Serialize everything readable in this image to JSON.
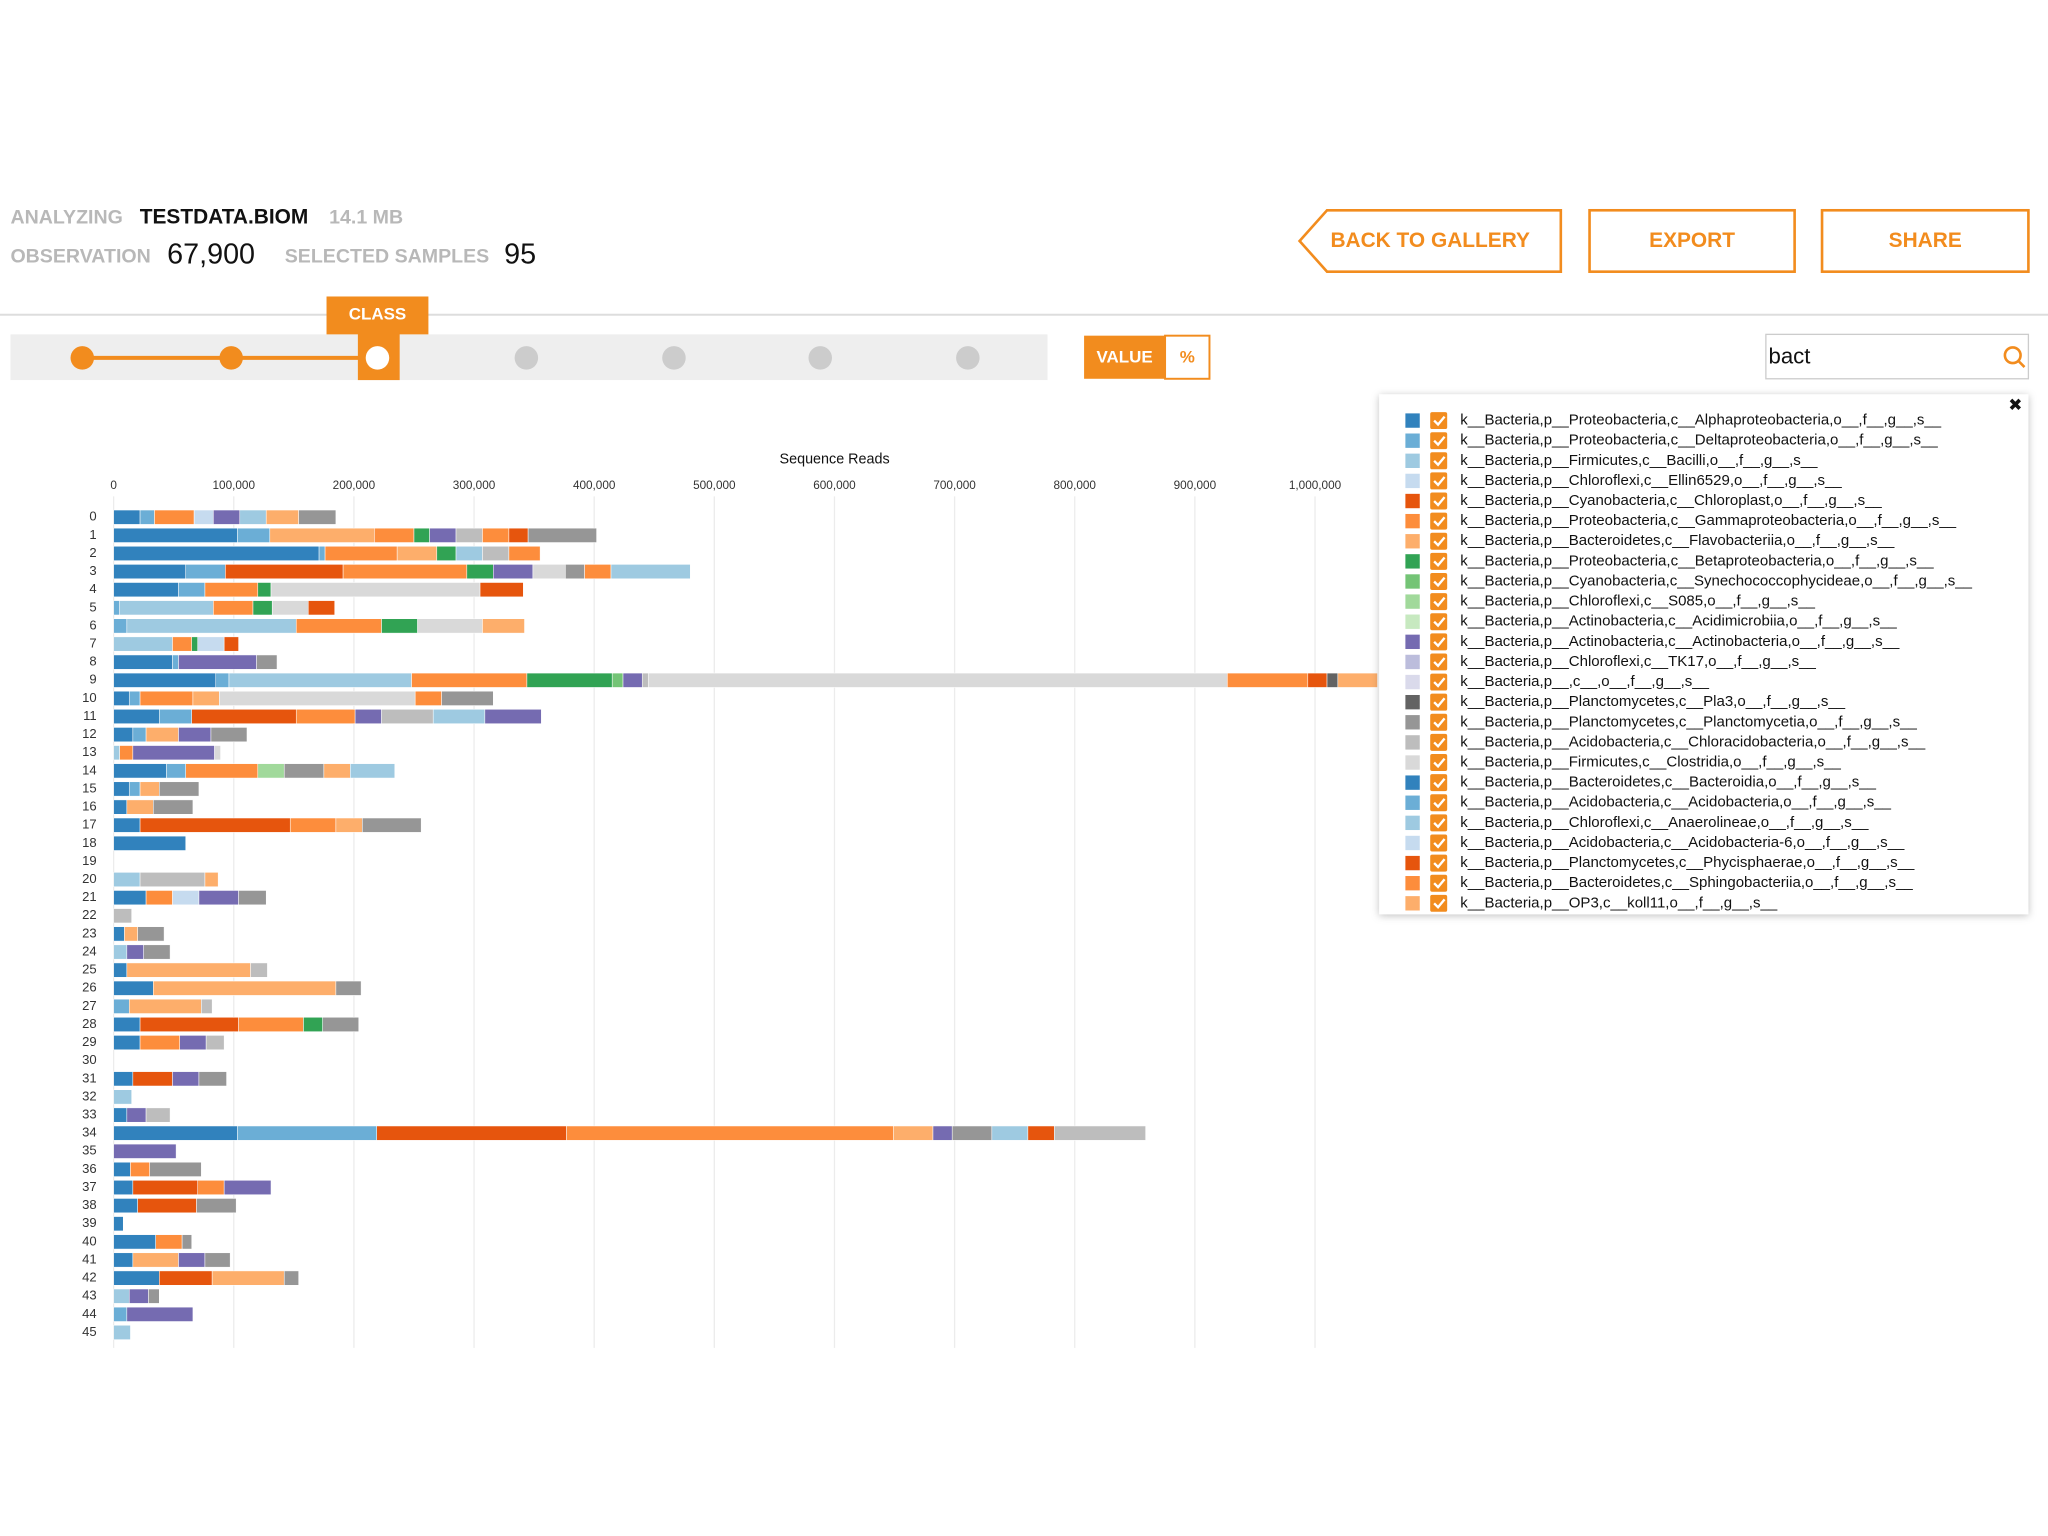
{
  "header": {
    "analyzing": "ANALYZING",
    "file": "TESTDATA.BIOM",
    "size": "14.1 MB",
    "observation_label": "OBSERVATION",
    "observation": "67,900",
    "samples_label": "SELECTED SAMPLES",
    "samples": "95"
  },
  "buttons": {
    "back": "BACK TO GALLERY",
    "export": "EXPORT",
    "share": "SHARE"
  },
  "slider": {
    "label": "CLASS"
  },
  "toggle": {
    "value": "VALUE",
    "percent": "%"
  },
  "search": {
    "query": "bact"
  },
  "chart_data": {
    "type": "stacked-bar-h",
    "x_label": "Sequence Reads",
    "grid": true,
    "xlim": [
      0,
      1060000
    ],
    "xticks": [
      0,
      {
        "value": 100000,
        "label": "100,000"
      },
      {
        "value": 200000,
        "label": "200,000"
      },
      {
        "value": 300000,
        "label": "300,000"
      },
      {
        "value": 400000,
        "label": "400,000"
      },
      {
        "value": 500000,
        "label": "500,000"
      },
      {
        "value": 600000,
        "label": "600,000"
      },
      {
        "value": 700000,
        "label": "700,000"
      },
      {
        "value": 800000,
        "label": "800,000"
      },
      {
        "value": 900000,
        "label": "900,000"
      },
      {
        "value": 1000000,
        "label": "1,000,000"
      }
    ],
    "categories": [
      "0",
      "1",
      "2",
      "3",
      "4",
      "5",
      "6",
      "7",
      "8",
      "9",
      "10",
      "11",
      "12",
      "13",
      "14",
      "15",
      "16",
      "17",
      "18",
      "19",
      "20",
      "21",
      "22",
      "23",
      "24",
      "25",
      "26",
      "27",
      "28",
      "29",
      "30",
      "31",
      "32",
      "33",
      "34",
      "35",
      "36",
      "37",
      "38",
      "39",
      "40",
      "41",
      "42",
      "43",
      "44",
      "45"
    ],
    "bars": [
      {
        "values": [
          22000,
          12000,
          33000,
          16000,
          22000,
          22000,
          27000,
          31000
        ],
        "colors": [
          "#3182bd",
          "#6baed6",
          "#fd8d3c",
          "#c6dbef",
          "#756bb1",
          "#9ecae1",
          "#fdae6b",
          "#969696"
        ]
      },
      {
        "values": [
          103000,
          27000,
          87000,
          33000,
          13000,
          22000,
          22000,
          22000,
          16000,
          57000
        ],
        "colors": [
          "#3182bd",
          "#6baed6",
          "#fdae6b",
          "#fd8d3c",
          "#31a354",
          "#756bb1",
          "#bdbdbd",
          "#fd8d3c",
          "#e6550d",
          "#969696"
        ]
      },
      {
        "values": [
          171000,
          5000,
          60000,
          33000,
          16000,
          22000,
          22000,
          26000
        ],
        "colors": [
          "#3182bd",
          "#6baed6",
          "#fd8d3c",
          "#fdae6b",
          "#31a354",
          "#9ecae1",
          "#bdbdbd",
          "#fd8d3c"
        ]
      },
      {
        "values": [
          60000,
          33000,
          98000,
          103000,
          22000,
          33000,
          27000,
          16000,
          22000,
          66000
        ],
        "colors": [
          "#3182bd",
          "#6baed6",
          "#e6550d",
          "#fd8d3c",
          "#31a354",
          "#756bb1",
          "#d9d9d9",
          "#969696",
          "#fd8d3c",
          "#9ecae1"
        ]
      },
      {
        "values": [
          54000,
          22000,
          44000,
          11000,
          174000,
          36000
        ],
        "colors": [
          "#3182bd",
          "#6baed6",
          "#fd8d3c",
          "#31a354",
          "#d9d9d9",
          "#e6550d"
        ]
      },
      {
        "values": [
          5000,
          78000,
          33000,
          16000,
          30000,
          22000
        ],
        "colors": [
          "#6baed6",
          "#9ecae1",
          "#fd8d3c",
          "#31a354",
          "#d9d9d9",
          "#e6550d"
        ]
      },
      {
        "values": [
          11000,
          141000,
          71000,
          30000,
          54000,
          35000
        ],
        "colors": [
          "#6baed6",
          "#9ecae1",
          "#fd8d3c",
          "#31a354",
          "#d9d9d9",
          "#fdae6b"
        ]
      },
      {
        "values": [
          49000,
          16000,
          5000,
          22000,
          12000
        ],
        "colors": [
          "#9ecae1",
          "#fd8d3c",
          "#31a354",
          "#c6dbef",
          "#e6550d"
        ]
      },
      {
        "values": [
          49000,
          5000,
          65000,
          17000
        ],
        "colors": [
          "#3182bd",
          "#6baed6",
          "#756bb1",
          "#969696"
        ]
      },
      {
        "values": [
          85000,
          11000,
          152000,
          96000,
          71000,
          9000,
          16000,
          5000,
          482000,
          67000,
          16000,
          9000,
          33000
        ],
        "colors": [
          "#3182bd",
          "#6baed6",
          "#9ecae1",
          "#fd8d3c",
          "#31a354",
          "#74c476",
          "#756bb1",
          "#bdbdbd",
          "#d9d9d9",
          "#fd8d3c",
          "#e6550d",
          "#636363",
          "#fdae6b"
        ]
      },
      {
        "values": [
          13000,
          9000,
          44000,
          22000,
          163000,
          22000,
          43000
        ],
        "colors": [
          "#3182bd",
          "#6baed6",
          "#fd8d3c",
          "#fdae6b",
          "#d9d9d9",
          "#fd8d3c",
          "#969696"
        ]
      },
      {
        "values": [
          38000,
          27000,
          87000,
          49000,
          22000,
          43000,
          43000,
          47000
        ],
        "colors": [
          "#3182bd",
          "#6baed6",
          "#e6550d",
          "#fd8d3c",
          "#756bb1",
          "#bdbdbd",
          "#9ecae1",
          "#756bb1"
        ]
      },
      {
        "values": [
          16000,
          11000,
          27000,
          27000,
          30000
        ],
        "colors": [
          "#3182bd",
          "#6baed6",
          "#fdae6b",
          "#756bb1",
          "#969696"
        ]
      },
      {
        "values": [
          5000,
          11000,
          68000,
          5000
        ],
        "colors": [
          "#9ecae1",
          "#fd8d3c",
          "#756bb1",
          "#d9d9d9"
        ]
      },
      {
        "values": [
          44000,
          16000,
          60000,
          22000,
          33000,
          22000,
          37000
        ],
        "colors": [
          "#3182bd",
          "#6baed6",
          "#fd8d3c",
          "#a1d99b",
          "#969696",
          "#fdae6b",
          "#9ecae1"
        ]
      },
      {
        "values": [
          13000,
          9000,
          16000,
          33000
        ],
        "colors": [
          "#3182bd",
          "#6baed6",
          "#fdae6b",
          "#969696"
        ]
      },
      {
        "values": [
          11000,
          22000,
          33000
        ],
        "colors": [
          "#3182bd",
          "#fdae6b",
          "#969696"
        ]
      },
      {
        "values": [
          22000,
          125000,
          38000,
          22000,
          49000
        ],
        "colors": [
          "#3182bd",
          "#e6550d",
          "#fd8d3c",
          "#fdae6b",
          "#969696"
        ]
      },
      {
        "values": [
          60000
        ],
        "colors": [
          "#3182bd"
        ]
      },
      {
        "values": [],
        "colors": []
      },
      {
        "values": [
          22000,
          54000,
          11000
        ],
        "colors": [
          "#9ecae1",
          "#bdbdbd",
          "#fdae6b"
        ]
      },
      {
        "values": [
          27000,
          22000,
          22000,
          33000,
          23000
        ],
        "colors": [
          "#3182bd",
          "#fd8d3c",
          "#c6dbef",
          "#756bb1",
          "#969696"
        ]
      },
      {
        "values": [
          15000
        ],
        "colors": [
          "#bdbdbd"
        ]
      },
      {
        "values": [
          9000,
          11000,
          22000
        ],
        "colors": [
          "#3182bd",
          "#fdae6b",
          "#969696"
        ]
      },
      {
        "values": [
          11000,
          14000,
          22000
        ],
        "colors": [
          "#9ecae1",
          "#756bb1",
          "#969696"
        ]
      },
      {
        "values": [
          11000,
          103000,
          14000
        ],
        "colors": [
          "#3182bd",
          "#fdae6b",
          "#bdbdbd"
        ]
      },
      {
        "values": [
          33000,
          152000,
          21000
        ],
        "colors": [
          "#3182bd",
          "#fdae6b",
          "#969696"
        ]
      },
      {
        "values": [
          13000,
          60000,
          9000
        ],
        "colors": [
          "#6baed6",
          "#fdae6b",
          "#bdbdbd"
        ]
      },
      {
        "values": [
          22000,
          82000,
          54000,
          16000,
          30000
        ],
        "colors": [
          "#3182bd",
          "#e6550d",
          "#fd8d3c",
          "#31a354",
          "#969696"
        ]
      },
      {
        "values": [
          22000,
          33000,
          22000,
          15000
        ],
        "colors": [
          "#3182bd",
          "#fd8d3c",
          "#756bb1",
          "#bdbdbd"
        ]
      },
      {
        "values": [],
        "colors": []
      },
      {
        "values": [
          16000,
          33000,
          22000,
          23000
        ],
        "colors": [
          "#3182bd",
          "#e6550d",
          "#756bb1",
          "#969696"
        ]
      },
      {
        "values": [
          15000
        ],
        "colors": [
          "#9ecae1"
        ]
      },
      {
        "values": [
          11000,
          16000,
          20000
        ],
        "colors": [
          "#3182bd",
          "#756bb1",
          "#bdbdbd"
        ]
      },
      {
        "values": [
          103000,
          116000,
          158000,
          272000,
          33000,
          16000,
          33000,
          30000,
          22000,
          76000
        ],
        "colors": [
          "#3182bd",
          "#6baed6",
          "#e6550d",
          "#fd8d3c",
          "#fdae6b",
          "#756bb1",
          "#969696",
          "#9ecae1",
          "#e6550d",
          "#bdbdbd"
        ]
      },
      {
        "values": [
          52000
        ],
        "colors": [
          "#756bb1"
        ]
      },
      {
        "values": [
          14000,
          16000,
          43000
        ],
        "colors": [
          "#3182bd",
          "#fd8d3c",
          "#969696"
        ]
      },
      {
        "values": [
          16000,
          54000,
          22000,
          39000
        ],
        "colors": [
          "#3182bd",
          "#e6550d",
          "#fd8d3c",
          "#756bb1"
        ]
      },
      {
        "values": [
          20000,
          49000,
          33000
        ],
        "colors": [
          "#3182bd",
          "#e6550d",
          "#969696"
        ]
      },
      {
        "values": [
          8000
        ],
        "colors": [
          "#3182bd"
        ]
      },
      {
        "values": [
          35000,
          22000,
          8000
        ],
        "colors": [
          "#3182bd",
          "#fd8d3c",
          "#969696"
        ]
      },
      {
        "values": [
          16000,
          38000,
          22000,
          21000
        ],
        "colors": [
          "#3182bd",
          "#fdae6b",
          "#756bb1",
          "#969696"
        ]
      },
      {
        "values": [
          38000,
          44000,
          60000,
          12000
        ],
        "colors": [
          "#3182bd",
          "#e6550d",
          "#fdae6b",
          "#969696"
        ]
      },
      {
        "values": [
          13000,
          16000,
          9000
        ],
        "colors": [
          "#9ecae1",
          "#756bb1",
          "#969696"
        ]
      },
      {
        "values": [
          11000,
          55000
        ],
        "colors": [
          "#6baed6",
          "#756bb1"
        ]
      },
      {
        "values": [
          14000
        ],
        "colors": [
          "#9ecae1"
        ]
      }
    ]
  },
  "legend": {
    "close": "✖",
    "items": [
      {
        "label": "k__Bacteria,p__Proteobacteria,c__Alphaproteobacteria,o__,f__,g__,s__",
        "color": "#3182bd",
        "checked": true
      },
      {
        "label": "k__Bacteria,p__Proteobacteria,c__Deltaproteobacteria,o__,f__,g__,s__",
        "color": "#6baed6",
        "checked": true
      },
      {
        "label": "k__Bacteria,p__Firmicutes,c__Bacilli,o__,f__,g__,s__",
        "color": "#9ecae1",
        "checked": true
      },
      {
        "label": "k__Bacteria,p__Chloroflexi,c__Ellin6529,o__,f__,g__,s__",
        "color": "#c6dbef",
        "checked": true
      },
      {
        "label": "k__Bacteria,p__Cyanobacteria,c__Chloroplast,o__,f__,g__,s__",
        "color": "#e6550d",
        "checked": true
      },
      {
        "label": "k__Bacteria,p__Proteobacteria,c__Gammaproteobacteria,o__,f__,g__,s__",
        "color": "#fd8d3c",
        "checked": true
      },
      {
        "label": "k__Bacteria,p__Bacteroidetes,c__Flavobacteriia,o__,f__,g__,s__",
        "color": "#fdae6b",
        "checked": true
      },
      {
        "label": "k__Bacteria,p__Proteobacteria,c__Betaproteobacteria,o__,f__,g__,s__",
        "color": "#31a354",
        "checked": true
      },
      {
        "label": "k__Bacteria,p__Cyanobacteria,c__Synechococcophycideae,o__,f__,g__,s__",
        "color": "#74c476",
        "checked": true
      },
      {
        "label": "k__Bacteria,p__Chloroflexi,c__S085,o__,f__,g__,s__",
        "color": "#a1d99b",
        "checked": true
      },
      {
        "label": "k__Bacteria,p__Actinobacteria,c__Acidimicrobiia,o__,f__,g__,s__",
        "color": "#c7e9c0",
        "checked": true
      },
      {
        "label": "k__Bacteria,p__Actinobacteria,c__Actinobacteria,o__,f__,g__,s__",
        "color": "#756bb1",
        "checked": true
      },
      {
        "label": "k__Bacteria,p__Chloroflexi,c__TK17,o__,f__,g__,s__",
        "color": "#bcbddc",
        "checked": true
      },
      {
        "label": "k__Bacteria,p__,c__,o__,f__,g__,s__",
        "color": "#dadaeb",
        "checked": true
      },
      {
        "label": "k__Bacteria,p__Planctomycetes,c__Pla3,o__,f__,g__,s__",
        "color": "#636363",
        "checked": true
      },
      {
        "label": "k__Bacteria,p__Planctomycetes,c__Planctomycetia,o__,f__,g__,s__",
        "color": "#969696",
        "checked": true
      },
      {
        "label": "k__Bacteria,p__Acidobacteria,c__Chloracidobacteria,o__,f__,g__,s__",
        "color": "#bdbdbd",
        "checked": true
      },
      {
        "label": "k__Bacteria,p__Firmicutes,c__Clostridia,o__,f__,g__,s__",
        "color": "#d9d9d9",
        "checked": true
      },
      {
        "label": "k__Bacteria,p__Bacteroidetes,c__Bacteroidia,o__,f__,g__,s__",
        "color": "#3182bd",
        "checked": true
      },
      {
        "label": "k__Bacteria,p__Acidobacteria,c__Acidobacteria,o__,f__,g__,s__",
        "color": "#6baed6",
        "checked": true
      },
      {
        "label": "k__Bacteria,p__Chloroflexi,c__Anaerolineae,o__,f__,g__,s__",
        "color": "#9ecae1",
        "checked": true
      },
      {
        "label": "k__Bacteria,p__Acidobacteria,c__Acidobacteria-6,o__,f__,g__,s__",
        "color": "#c6dbef",
        "checked": true
      },
      {
        "label": "k__Bacteria,p__Planctomycetes,c__Phycisphaerae,o__,f__,g__,s__",
        "color": "#e6550d",
        "checked": true
      },
      {
        "label": "k__Bacteria,p__Bacteroidetes,c__Sphingobacteriia,o__,f__,g__,s__",
        "color": "#fd8d3c",
        "checked": true
      },
      {
        "label": "k__Bacteria,p__OP3,c__koll11,o__,f__,g__,s__",
        "color": "#fdae6b",
        "checked": true
      }
    ]
  }
}
